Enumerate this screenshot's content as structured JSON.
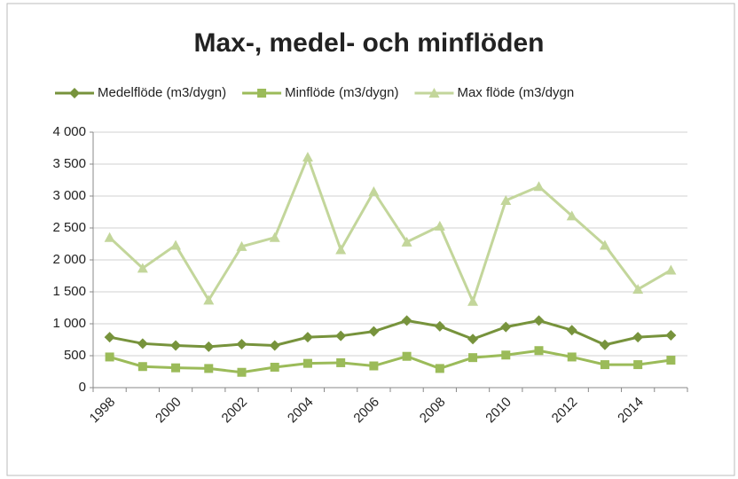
{
  "chart_data": {
    "type": "line",
    "title": "Max-, medel- och minflöden",
    "categories": [
      "1998",
      null,
      "2000",
      null,
      "2002",
      null,
      "2004",
      null,
      "2006",
      null,
      "2008",
      null,
      "2010",
      null,
      "2012",
      null,
      "2014",
      null
    ],
    "series": [
      {
        "name": "Medelflöde (m3/dygn)",
        "color": "#77933c",
        "marker": "diamond",
        "values": [
          790,
          690,
          660,
          640,
          680,
          660,
          790,
          810,
          880,
          1050,
          960,
          760,
          950,
          1050,
          900,
          670,
          790,
          820
        ]
      },
      {
        "name": "Minflöde (m3/dygn)",
        "color": "#9bbb59",
        "marker": "square",
        "values": [
          480,
          330,
          310,
          300,
          240,
          320,
          380,
          390,
          340,
          490,
          300,
          470,
          510,
          580,
          480,
          360,
          360,
          430
        ]
      },
      {
        "name": "Max flöde (m3/dygn",
        "color": "#c3d69b",
        "marker": "triangle",
        "values": [
          2350,
          1870,
          2230,
          1370,
          2210,
          2350,
          3610,
          2160,
          3070,
          2280,
          2530,
          1350,
          2930,
          3150,
          2690,
          2230,
          1540,
          1840
        ]
      }
    ],
    "ylim": [
      0,
      4000
    ],
    "yticks": [
      0,
      500,
      {
        "value": 1000,
        "label": "1 000"
      },
      {
        "value": 1500,
        "label": "1 500"
      },
      {
        "value": 2000,
        "label": "2 000"
      },
      {
        "value": 2500,
        "label": "2 500"
      },
      {
        "value": 3000,
        "label": "3 000"
      },
      {
        "value": 3500,
        "label": "3 500"
      },
      {
        "value": 4000,
        "label": "4 000"
      }
    ],
    "grid": true,
    "legend": "top"
  }
}
